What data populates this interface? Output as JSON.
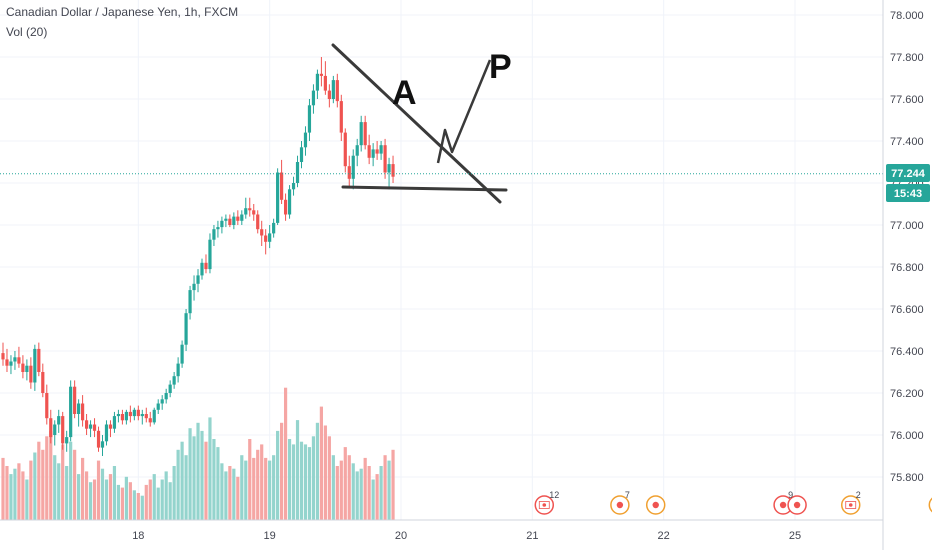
{
  "header": {
    "title": "Canadian Dollar / Japanese Yen, 1h, FXCM",
    "volume_label": "Vol (20)"
  },
  "colors": {
    "up": "#26a69a",
    "down": "#ef5350",
    "vol_up": "#94d4cd",
    "vol_down": "#f5a6a4",
    "price_line": "#26a69a",
    "axis_text": "#434651",
    "drawing": "#3a3a3a",
    "event_red": "#ef5350",
    "event_orange": "#f0a030"
  },
  "chart_data": {
    "type": "candlestick",
    "symbol": "Canadian Dollar / Japanese Yen",
    "interval": "1h",
    "source": "FXCM",
    "ylim": [
      75.65,
      78.05
    ],
    "y_ticks": [
      "78.000",
      "77.800",
      "77.600",
      "77.400",
      "77.200",
      "77.000",
      "76.800",
      "76.600",
      "76.400",
      "76.200",
      "76.000",
      "75.800"
    ],
    "x_ticks": [
      {
        "label": "18",
        "index": 34
      },
      {
        "label": "19",
        "index": 67
      },
      {
        "label": "20",
        "index": 100
      },
      {
        "label": "21",
        "index": 133
      },
      {
        "label": "22",
        "index": 166
      },
      {
        "label": "25",
        "index": 199
      }
    ],
    "last_price": "77.244",
    "last_price_value": 77.244,
    "countdown": "15:43",
    "volume_max": 100,
    "candles": [
      [
        76.39,
        76.44,
        76.33,
        76.36,
        46
      ],
      [
        76.36,
        76.41,
        76.3,
        76.33,
        40
      ],
      [
        76.33,
        76.38,
        76.29,
        76.35,
        34
      ],
      [
        76.35,
        76.4,
        76.31,
        76.37,
        38
      ],
      [
        76.37,
        76.42,
        76.32,
        76.34,
        42
      ],
      [
        76.34,
        76.38,
        76.27,
        76.3,
        36
      ],
      [
        76.3,
        76.36,
        76.26,
        76.33,
        30
      ],
      [
        76.33,
        76.37,
        76.22,
        76.25,
        44
      ],
      [
        76.25,
        76.43,
        76.21,
        76.41,
        50
      ],
      [
        76.41,
        76.44,
        76.28,
        76.3,
        58
      ],
      [
        76.3,
        76.34,
        76.18,
        76.2,
        52
      ],
      [
        76.2,
        76.24,
        76.05,
        76.08,
        62
      ],
      [
        76.08,
        76.12,
        75.96,
        75.99,
        66
      ],
      [
        76.0,
        76.07,
        75.95,
        76.05,
        48
      ],
      [
        76.05,
        76.12,
        76.01,
        76.09,
        42
      ],
      [
        76.09,
        76.11,
        75.93,
        75.96,
        56
      ],
      [
        75.96,
        76.02,
        75.92,
        75.99,
        40
      ],
      [
        75.99,
        76.26,
        75.97,
        76.23,
        58
      ],
      [
        76.23,
        76.26,
        76.08,
        76.1,
        52
      ],
      [
        76.1,
        76.17,
        76.04,
        76.15,
        34
      ],
      [
        76.15,
        76.19,
        76.04,
        76.07,
        46
      ],
      [
        76.07,
        76.1,
        76.0,
        76.03,
        36
      ],
      [
        76.03,
        76.07,
        75.99,
        76.05,
        28
      ],
      [
        76.05,
        76.08,
        75.99,
        76.02,
        30
      ],
      [
        76.02,
        76.04,
        75.92,
        75.94,
        44
      ],
      [
        75.94,
        76.0,
        75.9,
        75.97,
        38
      ],
      [
        75.97,
        76.07,
        75.95,
        76.05,
        30
      ],
      [
        76.05,
        76.07,
        75.99,
        76.03,
        34
      ],
      [
        76.03,
        76.11,
        76.01,
        76.09,
        40
      ],
      [
        76.09,
        76.12,
        76.06,
        76.1,
        26
      ],
      [
        76.1,
        76.12,
        76.05,
        76.07,
        24
      ],
      [
        76.07,
        76.12,
        76.05,
        76.11,
        32
      ],
      [
        76.11,
        76.14,
        76.06,
        76.09,
        28
      ],
      [
        76.09,
        76.13,
        76.07,
        76.12,
        22
      ],
      [
        76.12,
        76.14,
        76.07,
        76.09,
        20
      ],
      [
        76.09,
        76.12,
        76.05,
        76.1,
        18
      ],
      [
        76.1,
        76.13,
        76.06,
        76.08,
        26
      ],
      [
        76.08,
        76.11,
        76.04,
        76.06,
        30
      ],
      [
        76.06,
        76.13,
        76.05,
        76.12,
        34
      ],
      [
        76.12,
        76.17,
        76.1,
        76.15,
        24
      ],
      [
        76.15,
        76.19,
        76.12,
        76.17,
        30
      ],
      [
        76.17,
        76.22,
        76.15,
        76.2,
        36
      ],
      [
        76.2,
        76.26,
        76.18,
        76.24,
        28
      ],
      [
        76.24,
        76.3,
        76.22,
        76.28,
        40
      ],
      [
        76.28,
        76.37,
        76.25,
        76.34,
        52
      ],
      [
        76.34,
        76.45,
        76.32,
        76.43,
        58
      ],
      [
        76.43,
        76.6,
        76.4,
        76.58,
        48
      ],
      [
        76.58,
        76.71,
        76.55,
        76.69,
        68
      ],
      [
        76.69,
        76.76,
        76.64,
        76.72,
        62
      ],
      [
        76.72,
        76.79,
        76.68,
        76.76,
        72
      ],
      [
        76.76,
        76.84,
        76.74,
        76.82,
        66
      ],
      [
        76.82,
        76.86,
        76.77,
        76.79,
        58
      ],
      [
        76.79,
        76.96,
        76.77,
        76.93,
        76
      ],
      [
        76.93,
        77.0,
        76.9,
        76.98,
        60
      ],
      [
        76.98,
        77.02,
        76.94,
        76.99,
        54
      ],
      [
        76.99,
        77.04,
        76.96,
        77.02,
        42
      ],
      [
        77.02,
        77.05,
        76.99,
        77.03,
        36
      ],
      [
        77.03,
        77.05,
        76.99,
        77.0,
        40
      ],
      [
        77.0,
        77.06,
        76.98,
        77.04,
        38
      ],
      [
        77.04,
        77.07,
        77.0,
        77.02,
        32
      ],
      [
        77.02,
        77.07,
        77.0,
        77.05,
        48
      ],
      [
        77.05,
        77.13,
        77.03,
        77.08,
        44
      ],
      [
        77.08,
        77.13,
        77.04,
        77.07,
        60
      ],
      [
        77.07,
        77.1,
        77.02,
        77.05,
        46
      ],
      [
        77.05,
        77.07,
        76.96,
        76.98,
        52
      ],
      [
        76.98,
        77.02,
        76.9,
        76.95,
        56
      ],
      [
        76.95,
        76.98,
        76.86,
        76.92,
        46
      ],
      [
        76.92,
        77.0,
        76.89,
        76.96,
        44
      ],
      [
        76.96,
        77.03,
        76.94,
        77.01,
        48
      ],
      [
        77.01,
        77.27,
        77.0,
        77.25,
        66
      ],
      [
        77.25,
        77.31,
        77.1,
        77.12,
        72
      ],
      [
        77.12,
        77.15,
        77.02,
        77.05,
        98
      ],
      [
        77.05,
        77.19,
        77.03,
        77.17,
        60
      ],
      [
        77.17,
        77.23,
        77.14,
        77.2,
        56
      ],
      [
        77.2,
        77.33,
        77.18,
        77.3,
        74
      ],
      [
        77.3,
        77.4,
        77.27,
        77.37,
        58
      ],
      [
        77.37,
        77.47,
        77.33,
        77.44,
        56
      ],
      [
        77.44,
        77.6,
        77.4,
        77.57,
        54
      ],
      [
        77.57,
        77.67,
        77.53,
        77.64,
        62
      ],
      [
        77.64,
        77.74,
        77.6,
        77.72,
        72
      ],
      [
        77.72,
        77.8,
        77.66,
        77.71,
        84
      ],
      [
        77.71,
        77.78,
        77.62,
        77.64,
        70
      ],
      [
        77.64,
        77.67,
        77.56,
        77.6,
        62
      ],
      [
        77.6,
        77.71,
        77.58,
        77.69,
        48
      ],
      [
        77.69,
        77.72,
        77.56,
        77.59,
        40
      ],
      [
        77.59,
        77.62,
        77.4,
        77.44,
        44
      ],
      [
        77.44,
        77.46,
        77.25,
        77.28,
        54
      ],
      [
        77.28,
        77.33,
        77.18,
        77.22,
        48
      ],
      [
        77.22,
        77.36,
        77.17,
        77.33,
        42
      ],
      [
        77.33,
        77.41,
        77.28,
        77.38,
        36
      ],
      [
        77.38,
        77.52,
        77.35,
        77.49,
        38
      ],
      [
        77.49,
        77.52,
        77.36,
        77.38,
        46
      ],
      [
        77.38,
        77.43,
        77.29,
        77.32,
        40
      ],
      [
        77.32,
        77.39,
        77.28,
        77.36,
        30
      ],
      [
        77.36,
        77.4,
        77.31,
        77.34,
        34
      ],
      [
        77.34,
        77.4,
        77.31,
        77.38,
        40
      ],
      [
        77.38,
        77.41,
        77.22,
        77.25,
        48
      ],
      [
        77.25,
        77.32,
        77.17,
        77.29,
        44
      ],
      [
        77.29,
        77.33,
        77.2,
        77.23,
        52
      ]
    ]
  },
  "annotations": {
    "label_a": "A",
    "label_p": "P"
  },
  "events": [
    {
      "count": "12",
      "kind": "flag-ca",
      "index": 136
    },
    {
      "count": "7",
      "kind": "dot-orange",
      "index": 155
    },
    {
      "count": "",
      "kind": "dot-orange",
      "index": 164
    },
    {
      "count": "9",
      "kind": "dot-red-pair",
      "index": 196
    },
    {
      "count": "2",
      "kind": "flag-ca-orange",
      "index": 213
    },
    {
      "count": "",
      "kind": "dot-orange",
      "index": 235
    }
  ]
}
